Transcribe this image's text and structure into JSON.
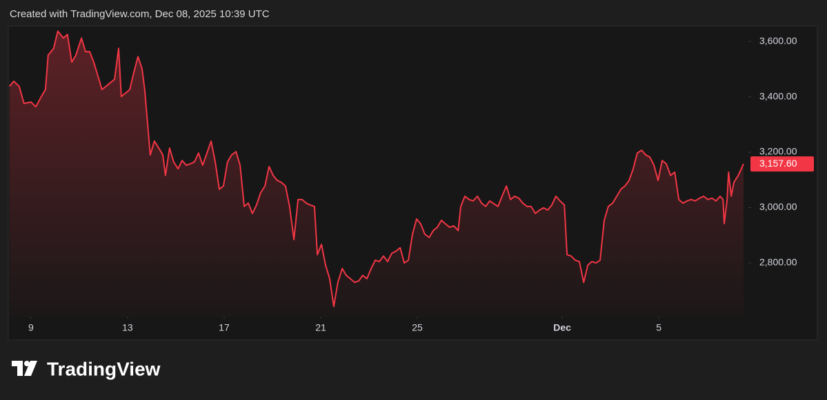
{
  "header": "Created with TradingView.com, Dec 08, 2025 10:39 UTC",
  "brand": "TradingView",
  "chart_data": {
    "type": "area",
    "xlim": [
      8.06,
      38.71
    ],
    "ylim": [
      2606,
      3655
    ],
    "xticks": [
      9,
      13,
      17,
      21,
      25,
      {
        "value": 31,
        "label": "Dec"
      },
      5.0001
    ],
    "yticks": [
      {
        "value": 2800,
        "label": "2,800.00"
      },
      {
        "value": 3000,
        "label": "3,000.00"
      },
      {
        "value": 3200,
        "label": "3,200.00"
      },
      {
        "value": 3400,
        "label": "3,400.00"
      },
      {
        "value": 3600,
        "label": "3,600.00"
      }
    ],
    "series": [
      {
        "color": "#f23645",
        "x": [
          8.11,
          8.29,
          8.51,
          8.71,
          9.0,
          9.2,
          9.43,
          9.6,
          9.71,
          9.94,
          10.11,
          10.34,
          10.51,
          10.69,
          10.86,
          11.09,
          11.26,
          11.43,
          11.6,
          11.77,
          11.94,
          12.11,
          12.29,
          12.46,
          12.63,
          12.74,
          12.91,
          13.09,
          13.26,
          13.43,
          13.6,
          13.71,
          13.83,
          13.94,
          14.11,
          14.29,
          14.46,
          14.57,
          14.74,
          14.91,
          15.09,
          15.26,
          15.43,
          15.6,
          15.77,
          15.94,
          16.11,
          16.29,
          16.46,
          16.63,
          16.8,
          16.97,
          17.14,
          17.31,
          17.49,
          17.66,
          17.83,
          18.0,
          18.17,
          18.34,
          18.51,
          18.69,
          18.86,
          19.03,
          19.2,
          19.37,
          19.54,
          19.71,
          19.89,
          20.06,
          20.23,
          20.4,
          20.57,
          20.74,
          20.86,
          21.03,
          21.2,
          21.37,
          21.54,
          21.71,
          21.89,
          22.06,
          22.23,
          22.4,
          22.57,
          22.74,
          22.91,
          23.09,
          23.26,
          23.43,
          23.6,
          23.77,
          23.94,
          24.11,
          24.29,
          24.46,
          24.63,
          24.8,
          24.97,
          25.14,
          25.31,
          25.49,
          25.66,
          25.83,
          26.0,
          26.17,
          26.34,
          26.51,
          26.69,
          26.8,
          26.97,
          27.14,
          27.31,
          27.49,
          27.66,
          27.83,
          28.0,
          28.17,
          28.34,
          28.51,
          28.69,
          28.86,
          29.03,
          29.2,
          29.37,
          29.54,
          29.71,
          29.89,
          30.06,
          30.23,
          30.4,
          30.57,
          30.74,
          30.91,
          31.09,
          31.2,
          31.37,
          31.54,
          31.71,
          31.89,
          32.06,
          32.23,
          32.4,
          32.57,
          32.74,
          32.91,
          33.09,
          33.26,
          33.43,
          33.6,
          33.77,
          33.94,
          34.11,
          34.29,
          34.46,
          34.63,
          34.8,
          34.97,
          35.14,
          35.31,
          35.49,
          35.66,
          35.83,
          36.0,
          36.17,
          36.34,
          36.51,
          36.69,
          36.86,
          37.03,
          37.2,
          37.37,
          37.54,
          37.66,
          37.71,
          37.83,
          37.89,
          38.0,
          38.11,
          38.29,
          38.51
        ],
        "values": [
          3438,
          3456,
          3438,
          3376,
          3381,
          3364,
          3401,
          3426,
          3550,
          3575,
          3637,
          3612,
          3625,
          3525,
          3550,
          3612,
          3563,
          3563,
          3525,
          3476,
          3426,
          3438,
          3451,
          3463,
          3575,
          3401,
          3413,
          3426,
          3488,
          3545,
          3501,
          3426,
          3302,
          3190,
          3240,
          3215,
          3190,
          3116,
          3215,
          3165,
          3140,
          3170,
          3153,
          3158,
          3165,
          3197,
          3153,
          3197,
          3240,
          3165,
          3066,
          3078,
          3165,
          3190,
          3202,
          3153,
          3004,
          3016,
          2979,
          3009,
          3053,
          3078,
          3148,
          3116,
          3098,
          3091,
          3078,
          3004,
          2884,
          3029,
          3029,
          3016,
          3009,
          3004,
          2830,
          2867,
          2792,
          2743,
          2643,
          2730,
          2780,
          2755,
          2743,
          2730,
          2735,
          2755,
          2743,
          2780,
          2810,
          2805,
          2825,
          2805,
          2835,
          2842,
          2855,
          2800,
          2810,
          2904,
          2959,
          2941,
          2904,
          2892,
          2917,
          2929,
          2954,
          2941,
          2929,
          2934,
          2917,
          3004,
          3041,
          3029,
          3024,
          3041,
          3016,
          3004,
          3024,
          3014,
          3004,
          3041,
          3078,
          3029,
          3041,
          3034,
          3016,
          3004,
          3004,
          2979,
          2991,
          2999,
          2991,
          3009,
          3041,
          3024,
          3009,
          2830,
          2825,
          2810,
          2805,
          2730,
          2792,
          2805,
          2800,
          2810,
          2954,
          3004,
          3016,
          3041,
          3066,
          3078,
          3098,
          3140,
          3197,
          3207,
          3190,
          3182,
          3153,
          3098,
          3170,
          3158,
          3116,
          3128,
          3029,
          3016,
          3024,
          3029,
          3024,
          3034,
          3041,
          3029,
          3034,
          3024,
          3041,
          3029,
          2942,
          3029,
          3128,
          3041,
          3091,
          3116,
          3157.6
        ],
        "last_label": {
          "value": 3157.6,
          "label": "3,157.60"
        }
      }
    ]
  }
}
